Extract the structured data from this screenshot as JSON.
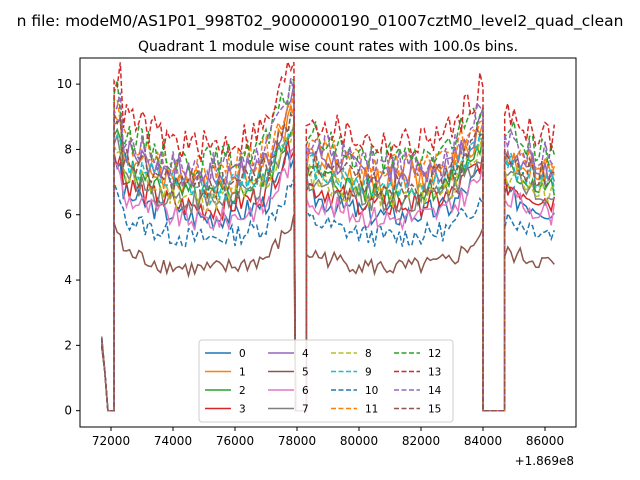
{
  "chart_data": {
    "type": "line",
    "suptitle": "n file: modeM0/AS1P01_998T02_9000000190_01007cztM0_level2_quad_clean",
    "title": "Quadrant 1 module wise count rates with 100.0s bins.",
    "xlabel": "",
    "ylabel": "",
    "x_offset_label": "+1.869e8",
    "xlim": [
      71000,
      87000
    ],
    "ylim": [
      -0.5,
      10.8
    ],
    "xticks": [
      72000,
      74000,
      76000,
      78000,
      80000,
      82000,
      84000,
      86000
    ],
    "xtick_labels": [
      "72000",
      "74000",
      "76000",
      "78000",
      "80000",
      "82000",
      "84000",
      "86000"
    ],
    "yticks": [
      0,
      2,
      4,
      6,
      8,
      10
    ],
    "ytick_labels": [
      "0",
      "2",
      "4",
      "6",
      "8",
      "10"
    ],
    "grid": false,
    "legend_position": "lower-center",
    "bins_s": 100,
    "series": [
      {
        "name": "0",
        "color": "#1f77b4",
        "style": "solid",
        "level": 6.3
      },
      {
        "name": "1",
        "color": "#ff7f0e",
        "style": "solid",
        "level": 7.4
      },
      {
        "name": "2",
        "color": "#2ca02c",
        "style": "solid",
        "level": 7.0
      },
      {
        "name": "3",
        "color": "#d62728",
        "style": "solid",
        "level": 6.6
      },
      {
        "name": "4",
        "color": "#9467bd",
        "style": "solid",
        "level": 7.6
      },
      {
        "name": "5",
        "color": "#8c564b",
        "style": "solid",
        "level": 4.6
      },
      {
        "name": "6",
        "color": "#e377c2",
        "style": "solid",
        "level": 6.2
      },
      {
        "name": "7",
        "color": "#7f7f7f",
        "style": "solid",
        "level": 6.8
      },
      {
        "name": "8",
        "color": "#bcbd22",
        "style": "dashed",
        "level": 6.9
      },
      {
        "name": "9",
        "color": "#17becf",
        "style": "dashed",
        "level": 7.2
      },
      {
        "name": "10",
        "color": "#1f77b4",
        "style": "dashed",
        "level": 5.6
      },
      {
        "name": "11",
        "color": "#ff7f0e",
        "style": "dashed",
        "level": 7.8
      },
      {
        "name": "12",
        "color": "#2ca02c",
        "style": "dashed",
        "level": 8.1
      },
      {
        "name": "13",
        "color": "#d62728",
        "style": "dashed",
        "level": 8.6
      },
      {
        "name": "14",
        "color": "#9467bd",
        "style": "dashed",
        "level": 7.9
      },
      {
        "name": "15",
        "color": "#8c564b",
        "style": "dashed",
        "level": 7.3
      }
    ],
    "segments": [
      {
        "x_start": 71700,
        "x_end": 71800,
        "shape": "start",
        "start_value": 2.3
      },
      {
        "x_start": 71900,
        "x_end": 72100,
        "shape": "zero"
      },
      {
        "x_start": 72100,
        "x_end": 77900,
        "shape": "orbit-1"
      },
      {
        "x_start": 77950,
        "x_end": 78300,
        "shape": "zero"
      },
      {
        "x_start": 78300,
        "x_end": 84000,
        "shape": "orbit-2"
      },
      {
        "x_start": 84000,
        "x_end": 84700,
        "shape": "zero"
      },
      {
        "x_start": 84700,
        "x_end": 86300,
        "shape": "orbit-3"
      }
    ]
  }
}
